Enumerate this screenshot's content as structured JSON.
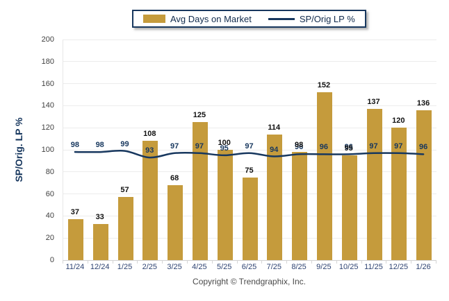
{
  "chart_data": {
    "type": "bar",
    "subtype": "bar-and-line-combo",
    "categories": [
      "11/24",
      "12/24",
      "1/25",
      "2/25",
      "3/25",
      "4/25",
      "5/25",
      "6/25",
      "7/25",
      "8/25",
      "9/25",
      "10/25",
      "11/25",
      "12/25",
      "1/26"
    ],
    "series": [
      {
        "name": "Avg Days on Market",
        "type": "bar",
        "color": "#C59B3C",
        "values": [
          37,
          33,
          57,
          108,
          68,
          125,
          100,
          75,
          114,
          98,
          152,
          95,
          137,
          120,
          136
        ]
      },
      {
        "name": "SP/Orig LP %",
        "type": "line",
        "color": "#17375E",
        "values": [
          98,
          98,
          99,
          93,
          97,
          97,
          95,
          97,
          94,
          96,
          96,
          96,
          97,
          97,
          96
        ]
      }
    ],
    "title": "",
    "xlabel": "",
    "ylabel": "SP/Orig. LP %",
    "ylim": [
      0,
      200
    ],
    "yticks": [
      0,
      20,
      40,
      60,
      80,
      100,
      120,
      140,
      160,
      180,
      200
    ],
    "grid": true,
    "legend_position": "top-center"
  },
  "legend": {
    "bar_label": "Avg Days on Market",
    "line_label": "SP/Orig LP %"
  },
  "footer": {
    "copyright": "Copyright © Trendgraphix, Inc."
  },
  "colors": {
    "bar": "#C59B3C",
    "line": "#17375E",
    "bar_value_label": "#111111",
    "line_value_label": "#17375E",
    "grid": "#ECECEC",
    "axis_baseline": "#D0D0D0",
    "y_tick_text": "#3F3F3F",
    "x_tick_text": "#2E4372",
    "legend_border": "#17375E",
    "copyright_text": "#4A4A4A"
  }
}
